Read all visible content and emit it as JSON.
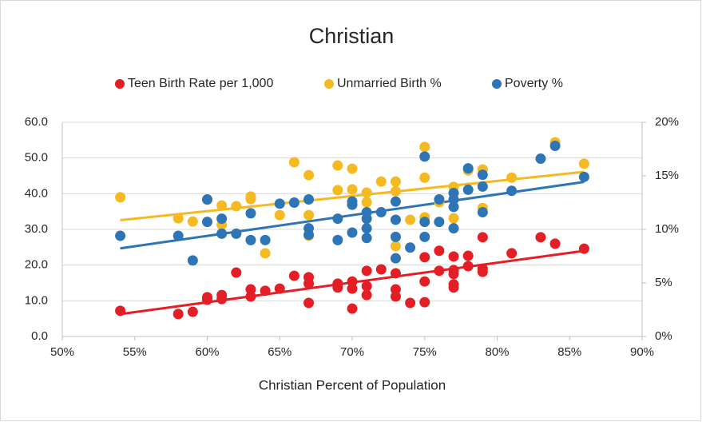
{
  "chart_data": {
    "type": "scatter",
    "title": "Christian",
    "x_label": "Christian Percent of Population",
    "xlim": [
      0.5,
      0.9
    ],
    "xticks": [
      {
        "value": 0.5,
        "label": "50%"
      },
      {
        "value": 0.55,
        "label": "55%"
      },
      {
        "value": 0.6,
        "label": "60%"
      },
      {
        "value": 0.65,
        "label": "65%"
      },
      {
        "value": 0.7,
        "label": "70%"
      },
      {
        "value": 0.75,
        "label": "75%"
      },
      {
        "value": 0.8,
        "label": "80%"
      },
      {
        "value": 0.85,
        "label": "85%"
      },
      {
        "value": 0.9,
        "label": "90%"
      }
    ],
    "ylim": [
      0,
      60
    ],
    "yticks": [
      {
        "value": 0,
        "label": "0.0"
      },
      {
        "value": 10,
        "label": "10.0"
      },
      {
        "value": 20,
        "label": "20.0"
      },
      {
        "value": 30,
        "label": "30.0"
      },
      {
        "value": 40,
        "label": "40.0"
      },
      {
        "value": 50,
        "label": "50.0"
      },
      {
        "value": 60,
        "label": "60.0"
      }
    ],
    "y2lim": [
      0,
      0.2
    ],
    "y2ticks": [
      {
        "value": 0,
        "label": "0%"
      },
      {
        "value": 0.05,
        "label": "5%"
      },
      {
        "value": 0.1,
        "label": "10%"
      },
      {
        "value": 0.15,
        "label": "15%"
      },
      {
        "value": 0.2,
        "label": "20%"
      }
    ],
    "grid": true,
    "trendline": true,
    "legend": "top",
    "series": [
      {
        "name": "Teen Birth Rate per 1,000",
        "color": "#e31e24",
        "x": [
          0.54,
          0.58,
          0.59,
          0.6,
          0.6,
          0.61,
          0.61,
          0.62,
          0.63,
          0.63,
          0.64,
          0.65,
          0.66,
          0.67,
          0.67,
          0.67,
          0.69,
          0.69,
          0.7,
          0.7,
          0.7,
          0.71,
          0.71,
          0.71,
          0.72,
          0.73,
          0.73,
          0.73,
          0.74,
          0.75,
          0.75,
          0.75,
          0.76,
          0.76,
          0.77,
          0.77,
          0.77,
          0.77,
          0.77,
          0.78,
          0.78,
          0.79,
          0.79,
          0.79,
          0.81,
          0.83,
          0.84,
          0.86
        ],
        "values": [
          7.2,
          6.3,
          6.9,
          10.3,
          11.0,
          10.5,
          11.6,
          17.9,
          13.2,
          11.2,
          12.8,
          13.4,
          17.0,
          16.6,
          14.8,
          9.4,
          14.8,
          13.7,
          15.4,
          13.4,
          7.8,
          18.4,
          14.1,
          11.6,
          18.8,
          17.7,
          13.2,
          11.2,
          9.4,
          9.6,
          15.4,
          22.2,
          18.4,
          24.0,
          22.4,
          18.6,
          17.5,
          14.6,
          13.7,
          22.6,
          19.7,
          27.8,
          19.0,
          18.1,
          23.3,
          27.8,
          26.0,
          24.6
        ]
      },
      {
        "name": "Unmarried Birth %",
        "color": "#f5b922",
        "x": [
          0.54,
          0.58,
          0.59,
          0.6,
          0.61,
          0.61,
          0.62,
          0.63,
          0.63,
          0.64,
          0.65,
          0.66,
          0.67,
          0.67,
          0.67,
          0.69,
          0.69,
          0.7,
          0.7,
          0.7,
          0.71,
          0.71,
          0.72,
          0.73,
          0.73,
          0.73,
          0.74,
          0.75,
          0.75,
          0.75,
          0.76,
          0.77,
          0.77,
          0.78,
          0.79,
          0.79,
          0.81,
          0.84,
          0.86
        ],
        "values": [
          39.0,
          33.1,
          32.2,
          38.3,
          36.7,
          31.3,
          36.5,
          39.2,
          38.5,
          23.3,
          34.0,
          48.8,
          45.2,
          34.0,
          28.2,
          47.9,
          41.0,
          47.0,
          41.2,
          36.9,
          40.3,
          37.6,
          43.4,
          43.4,
          40.7,
          25.3,
          32.7,
          53.1,
          44.5,
          33.4,
          37.6,
          41.9,
          33.1,
          46.5,
          46.8,
          36.0,
          44.5,
          54.4,
          48.4
        ]
      },
      {
        "name": "Poverty %",
        "color": "#2e75b6",
        "axis": "y2",
        "x": [
          0.54,
          0.58,
          0.59,
          0.6,
          0.6,
          0.61,
          0.61,
          0.62,
          0.63,
          0.63,
          0.64,
          0.65,
          0.66,
          0.67,
          0.67,
          0.67,
          0.69,
          0.69,
          0.7,
          0.7,
          0.7,
          0.71,
          0.71,
          0.71,
          0.71,
          0.72,
          0.73,
          0.73,
          0.73,
          0.73,
          0.74,
          0.75,
          0.75,
          0.75,
          0.76,
          0.76,
          0.77,
          0.77,
          0.77,
          0.77,
          0.78,
          0.78,
          0.79,
          0.79,
          0.79,
          0.81,
          0.83,
          0.84,
          0.86
        ],
        "values": [
          0.094,
          0.094,
          0.071,
          0.128,
          0.107,
          0.11,
          0.096,
          0.096,
          0.115,
          0.09,
          0.09,
          0.124,
          0.125,
          0.128,
          0.101,
          0.095,
          0.11,
          0.09,
          0.126,
          0.123,
          0.097,
          0.116,
          0.11,
          0.101,
          0.092,
          0.116,
          0.126,
          0.109,
          0.093,
          0.073,
          0.083,
          0.168,
          0.107,
          0.093,
          0.128,
          0.107,
          0.134,
          0.128,
          0.121,
          0.101,
          0.157,
          0.137,
          0.151,
          0.14,
          0.116,
          0.136,
          0.166,
          0.178,
          0.149
        ]
      }
    ]
  }
}
